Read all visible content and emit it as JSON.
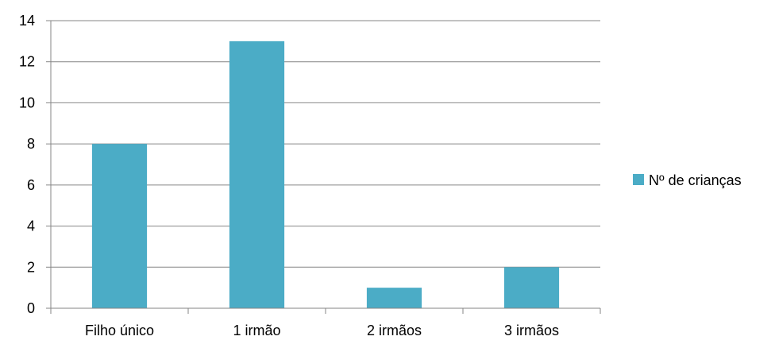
{
  "chart_data": {
    "type": "bar",
    "categories": [
      "Filho único",
      "1 irmão",
      "2 irmãos",
      "3 irmãos"
    ],
    "series": [
      {
        "name": "Nº de crianças",
        "values": [
          8,
          13,
          1,
          2
        ],
        "color": "#4bacc6"
      }
    ],
    "ylim": [
      0,
      14
    ],
    "yticks": [
      0,
      2,
      4,
      6,
      8,
      10,
      12,
      14
    ],
    "grid": true,
    "legend": "right",
    "colors": {
      "bar": "#4bacc6",
      "grid": "#868686",
      "axis": "#868686",
      "text": "#000000"
    }
  }
}
